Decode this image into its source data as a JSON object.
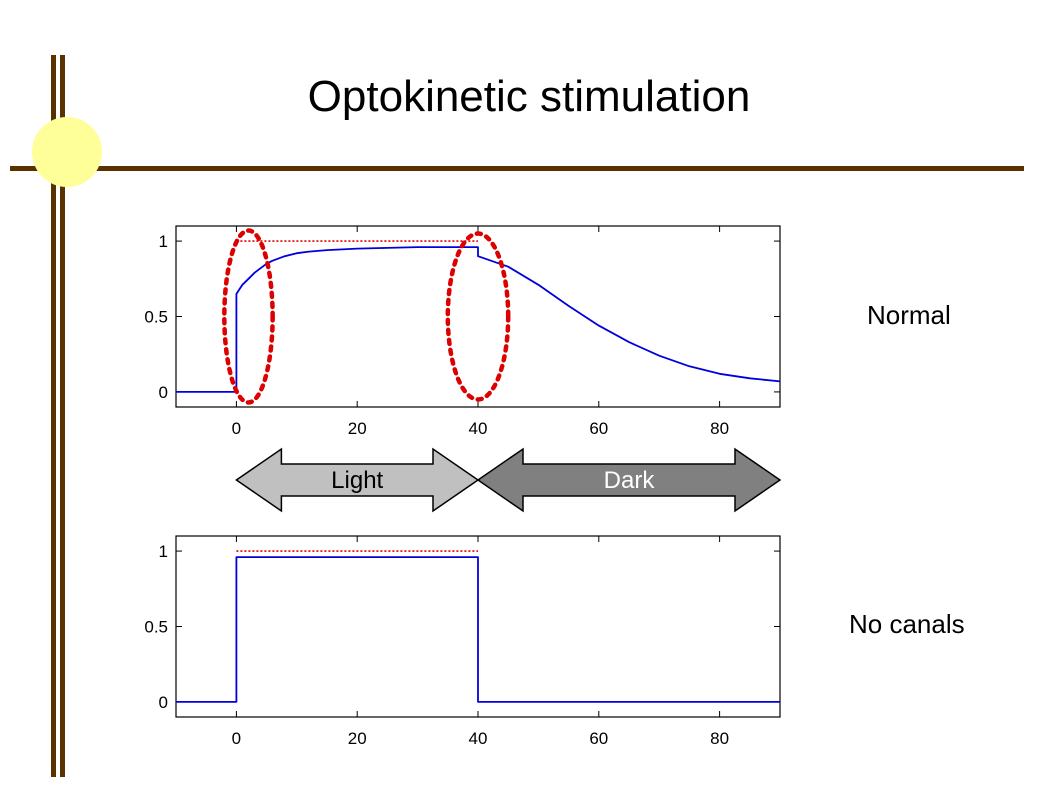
{
  "title": "Optokinetic stimulation",
  "colors": {
    "frame": "#5a3200",
    "sun": "#ffff99",
    "response": "#0000dd",
    "stimulus": "#dd0000",
    "light_arrow": "#c0c0c0",
    "dark_arrow": "#808080"
  },
  "arrows": {
    "light": {
      "label": "Light",
      "x_range": [
        0,
        40
      ]
    },
    "dark": {
      "label": "Dark",
      "x_range": [
        40,
        90
      ]
    }
  },
  "chart_data": [
    {
      "type": "line",
      "label": "Normal",
      "xlim": [
        -10,
        90
      ],
      "ylim": [
        -0.1,
        1.1
      ],
      "xticks": [
        0,
        20,
        40,
        60,
        80
      ],
      "yticks": [
        0,
        0.5,
        1
      ],
      "ytick_labels": [
        "0",
        "0.5",
        "1"
      ],
      "grid": false,
      "series": [
        {
          "color": "#0000dd",
          "style": "solid",
          "x": [
            -10,
            0,
            0,
            1,
            2,
            3,
            4,
            5,
            6,
            8,
            10,
            12,
            15,
            20,
            25,
            30,
            35,
            40,
            40,
            45,
            50,
            55,
            60,
            65,
            70,
            75,
            80,
            85,
            90
          ],
          "y": [
            0,
            0,
            0.65,
            0.71,
            0.75,
            0.79,
            0.82,
            0.85,
            0.87,
            0.9,
            0.92,
            0.93,
            0.94,
            0.95,
            0.955,
            0.96,
            0.96,
            0.96,
            0.9,
            0.83,
            0.71,
            0.57,
            0.44,
            0.33,
            0.24,
            0.17,
            0.12,
            0.09,
            0.07
          ]
        },
        {
          "color": "#dd0000",
          "style": "dotted",
          "x": [
            0,
            40
          ],
          "y": [
            1,
            1
          ]
        }
      ],
      "annotations": [
        {
          "shape": "ellipse",
          "cx": 2,
          "cy": 0.5,
          "rx": 4,
          "ry": 0.57,
          "color": "#dd0000",
          "style": "dotted"
        },
        {
          "shape": "ellipse",
          "cx": 40,
          "cy": 0.5,
          "rx": 5,
          "ry": 0.55,
          "color": "#dd0000",
          "style": "dotted"
        }
      ]
    },
    {
      "type": "line",
      "label": "No canals",
      "xlim": [
        -10,
        90
      ],
      "ylim": [
        -0.1,
        1.1
      ],
      "xticks": [
        0,
        20,
        40,
        60,
        80
      ],
      "yticks": [
        0,
        0.5,
        1
      ],
      "ytick_labels": [
        "0",
        "0.5",
        "1"
      ],
      "grid": false,
      "series": [
        {
          "color": "#0000dd",
          "style": "solid",
          "x": [
            -10,
            0,
            0,
            40,
            40,
            90
          ],
          "y": [
            0,
            0,
            0.96,
            0.96,
            0,
            0
          ]
        },
        {
          "color": "#dd0000",
          "style": "dotted",
          "x": [
            0,
            40
          ],
          "y": [
            1,
            1
          ]
        }
      ]
    }
  ]
}
